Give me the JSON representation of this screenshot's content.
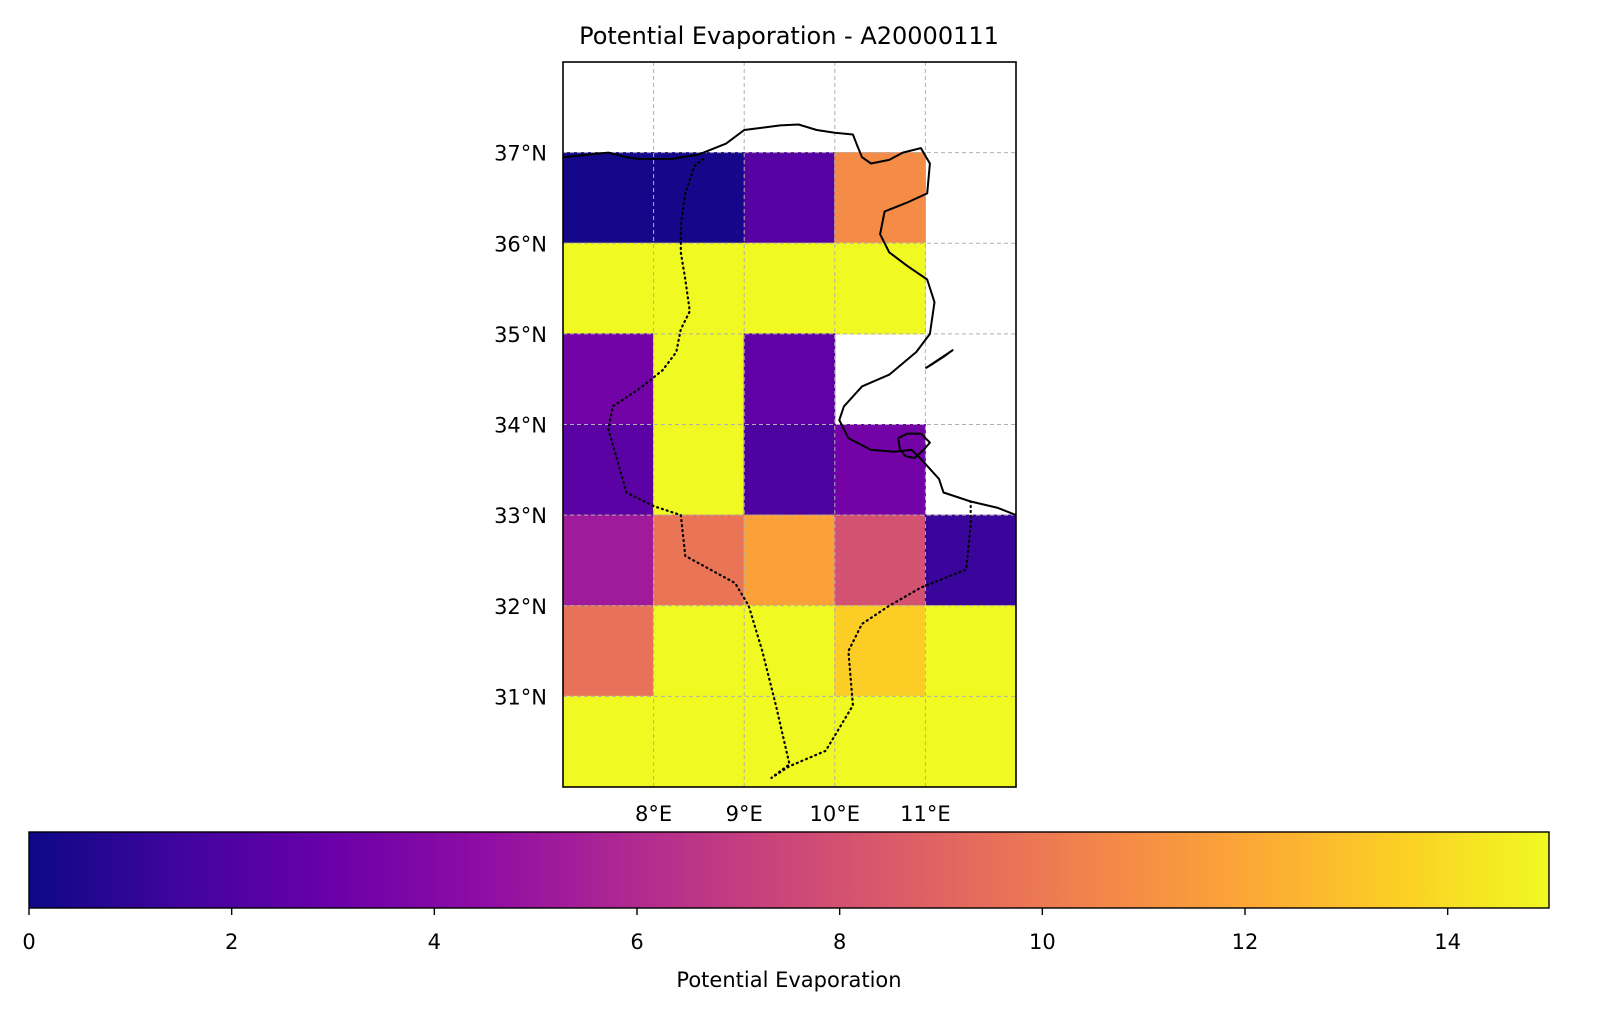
{
  "chart_data": {
    "type": "heatmap",
    "title": "Potential Evaporation - A20000111",
    "x_ticks": [
      "8°E",
      "9°E",
      "10°E",
      "11°E"
    ],
    "y_ticks": [
      "31°N",
      "32°N",
      "33°N",
      "34°N",
      "35°N",
      "36°N",
      "37°N"
    ],
    "lon_range": [
      7.0,
      12.0
    ],
    "lat_range": [
      30.0,
      38.0
    ],
    "grid": true,
    "colormap": "plasma",
    "colorbar": {
      "label": "Potential Evaporation",
      "range": [
        0,
        15
      ],
      "ticks": [
        "0",
        "2",
        "4",
        "6",
        "8",
        "10",
        "12",
        "14"
      ],
      "orientation": "horizontal",
      "placement": "bottom"
    },
    "cell_size_deg": 1,
    "cells": [
      {
        "lon": 7,
        "lat": 36,
        "value": 0.2
      },
      {
        "lon": 8,
        "lat": 36,
        "value": 0.2
      },
      {
        "lon": 9,
        "lat": 36,
        "value": 2.3
      },
      {
        "lon": 10,
        "lat": 36,
        "value": 10.8
      },
      {
        "lon": 7,
        "lat": 35,
        "value": 15
      },
      {
        "lon": 8,
        "lat": 35,
        "value": 15
      },
      {
        "lon": 9,
        "lat": 35,
        "value": 15
      },
      {
        "lon": 10,
        "lat": 35,
        "value": 15
      },
      {
        "lon": 7,
        "lat": 34,
        "value": 3.3
      },
      {
        "lon": 8,
        "lat": 34,
        "value": 15
      },
      {
        "lon": 9,
        "lat": 34,
        "value": 2.6
      },
      {
        "lon": 7,
        "lat": 33,
        "value": 2.4
      },
      {
        "lon": 8,
        "lat": 33,
        "value": 15
      },
      {
        "lon": 9,
        "lat": 33,
        "value": 1.9
      },
      {
        "lon": 10,
        "lat": 33,
        "value": 3.4
      },
      {
        "lon": 7,
        "lat": 32,
        "value": 5.2
      },
      {
        "lon": 8,
        "lat": 32,
        "value": 9.8
      },
      {
        "lon": 9,
        "lat": 32,
        "value": 11.8
      },
      {
        "lon": 10,
        "lat": 32,
        "value": 8.0
      },
      {
        "lon": 11,
        "lat": 32,
        "value": 1.3
      },
      {
        "lon": 7,
        "lat": 31,
        "value": 9.6
      },
      {
        "lon": 8,
        "lat": 31,
        "value": 15
      },
      {
        "lon": 9,
        "lat": 31,
        "value": 15
      },
      {
        "lon": 10,
        "lat": 31,
        "value": 13.5
      },
      {
        "lon": 11,
        "lat": 31,
        "value": 15
      },
      {
        "lon": 7,
        "lat": 30,
        "value": 15
      },
      {
        "lon": 8,
        "lat": 30,
        "value": 15
      },
      {
        "lon": 9,
        "lat": 30,
        "value": 15
      },
      {
        "lon": 10,
        "lat": 30,
        "value": 15
      },
      {
        "lon": 11,
        "lat": 30,
        "value": 15
      }
    ]
  },
  "map": {
    "coastline_lonlat": [
      [
        7.0,
        36.95
      ],
      [
        7.3,
        36.98
      ],
      [
        7.5,
        37.0
      ],
      [
        7.7,
        36.95
      ],
      [
        7.85,
        36.93
      ],
      [
        8.2,
        36.93
      ],
      [
        8.5,
        36.98
      ],
      [
        8.8,
        37.1
      ],
      [
        9.0,
        37.25
      ],
      [
        9.4,
        37.3
      ],
      [
        9.6,
        37.31
      ],
      [
        9.8,
        37.25
      ],
      [
        10.0,
        37.22
      ],
      [
        10.2,
        37.2
      ],
      [
        10.25,
        37.07
      ],
      [
        10.3,
        36.95
      ],
      [
        10.4,
        36.88
      ],
      [
        10.6,
        36.92
      ],
      [
        10.75,
        37.0
      ],
      [
        10.95,
        37.05
      ],
      [
        11.05,
        36.88
      ],
      [
        11.02,
        36.55
      ],
      [
        10.8,
        36.45
      ],
      [
        10.55,
        36.35
      ],
      [
        10.5,
        36.1
      ],
      [
        10.6,
        35.9
      ],
      [
        10.8,
        35.75
      ],
      [
        11.02,
        35.6
      ],
      [
        11.1,
        35.35
      ],
      [
        11.05,
        35.0
      ],
      [
        10.9,
        34.8
      ],
      [
        10.6,
        34.55
      ],
      [
        10.3,
        34.42
      ],
      [
        10.1,
        34.2
      ],
      [
        10.05,
        34.05
      ],
      [
        10.15,
        33.85
      ],
      [
        10.4,
        33.72
      ],
      [
        10.65,
        33.7
      ],
      [
        10.85,
        33.72
      ],
      [
        10.95,
        33.62
      ],
      [
        11.15,
        33.4
      ],
      [
        11.2,
        33.25
      ],
      [
        11.5,
        33.15
      ],
      [
        11.8,
        33.08
      ],
      [
        12.0,
        33.0
      ]
    ],
    "border_lonlat": [
      [
        8.55,
        36.93
      ],
      [
        8.45,
        36.85
      ],
      [
        8.35,
        36.55
      ],
      [
        8.3,
        36.2
      ],
      [
        8.3,
        35.9
      ],
      [
        8.35,
        35.6
      ],
      [
        8.4,
        35.25
      ],
      [
        8.3,
        35.05
      ],
      [
        8.25,
        34.8
      ],
      [
        8.1,
        34.6
      ],
      [
        7.85,
        34.4
      ],
      [
        7.55,
        34.2
      ],
      [
        7.5,
        33.95
      ],
      [
        7.6,
        33.6
      ],
      [
        7.7,
        33.25
      ],
      [
        8.0,
        33.1
      ],
      [
        8.3,
        33.0
      ],
      [
        8.35,
        32.55
      ],
      [
        8.9,
        32.25
      ],
      [
        9.05,
        32.0
      ],
      [
        9.2,
        31.5
      ],
      [
        9.35,
        30.9
      ],
      [
        9.5,
        30.25
      ],
      [
        9.3,
        30.1
      ],
      [
        9.5,
        30.23
      ],
      [
        9.9,
        30.4
      ],
      [
        10.2,
        30.9
      ],
      [
        10.15,
        31.5
      ],
      [
        10.3,
        31.8
      ],
      [
        10.6,
        32.0
      ],
      [
        10.95,
        32.2
      ],
      [
        11.45,
        32.4
      ],
      [
        11.5,
        32.9
      ],
      [
        11.5,
        33.15
      ]
    ],
    "djerba_lonlat": [
      [
        10.7,
        33.85
      ],
      [
        10.8,
        33.9
      ],
      [
        10.95,
        33.9
      ],
      [
        11.05,
        33.8
      ],
      [
        10.98,
        33.72
      ],
      [
        10.88,
        33.63
      ],
      [
        10.78,
        33.65
      ],
      [
        10.72,
        33.72
      ],
      [
        10.7,
        33.85
      ]
    ],
    "kerkennah_lonlat": [
      [
        11.0,
        34.62
      ],
      [
        11.12,
        34.7
      ],
      [
        11.3,
        34.82
      ],
      [
        11.22,
        34.76
      ],
      [
        11.05,
        34.65
      ],
      [
        11.0,
        34.62
      ]
    ]
  }
}
